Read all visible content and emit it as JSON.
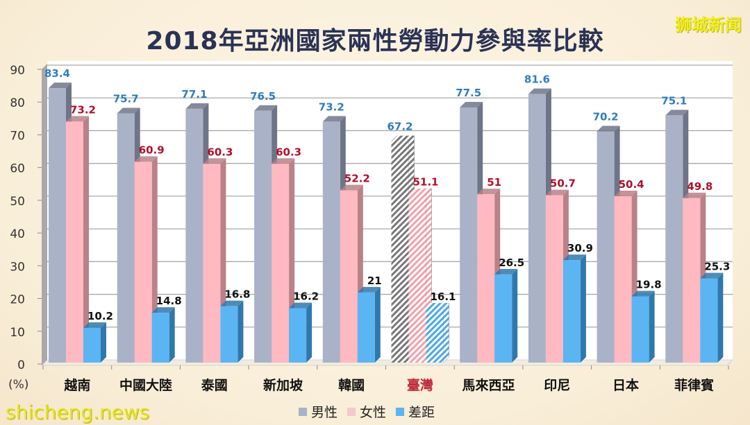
{
  "title": "2018年亞洲國家兩性勞動力參與率比較",
  "watermark_top_right": "狮城新闻",
  "watermark_bottom_left": "shicheng.news",
  "y_unit_label": "(%)",
  "colors": {
    "male": "#aab2c8",
    "male_side": "#6e7587",
    "female": "#ffb9c0",
    "female_side": "#b98188",
    "gap": "#5bb5f2",
    "gap_side": "#2f78ac",
    "highlight_category": "#c0283a"
  },
  "legend": [
    {
      "label": "男性",
      "color": "#aab2c8"
    },
    {
      "label": "女性",
      "color": "#f7c7cc"
    },
    {
      "label": "差距",
      "color": "#5bb5f2"
    }
  ],
  "chart_data": {
    "type": "bar",
    "title": "2018年亞洲國家兩性勞動力參與率比較",
    "xlabel": "",
    "ylabel": "(%)",
    "ylim": [
      0,
      90
    ],
    "yticks": [
      0,
      10,
      20,
      30,
      40,
      50,
      60,
      70,
      80,
      90
    ],
    "grid": true,
    "legend_position": "bottom",
    "categories": [
      "越南",
      "中國大陸",
      "泰國",
      "新加坡",
      "韓國",
      "臺灣",
      "馬來西亞",
      "印尼",
      "日本",
      "菲律賓"
    ],
    "highlighted_category": "臺灣",
    "series": [
      {
        "name": "男性",
        "values": [
          83.4,
          75.7,
          77.1,
          76.5,
          73.2,
          67.2,
          77.5,
          81.6,
          70.2,
          75.1
        ]
      },
      {
        "name": "女性",
        "values": [
          73.2,
          60.9,
          60.3,
          60.3,
          52.2,
          51.1,
          51,
          50.7,
          50.4,
          49.8
        ]
      },
      {
        "name": "差距",
        "values": [
          10.2,
          14.8,
          16.8,
          16.2,
          21,
          16.1,
          26.5,
          30.9,
          19.8,
          25.3
        ]
      }
    ]
  }
}
